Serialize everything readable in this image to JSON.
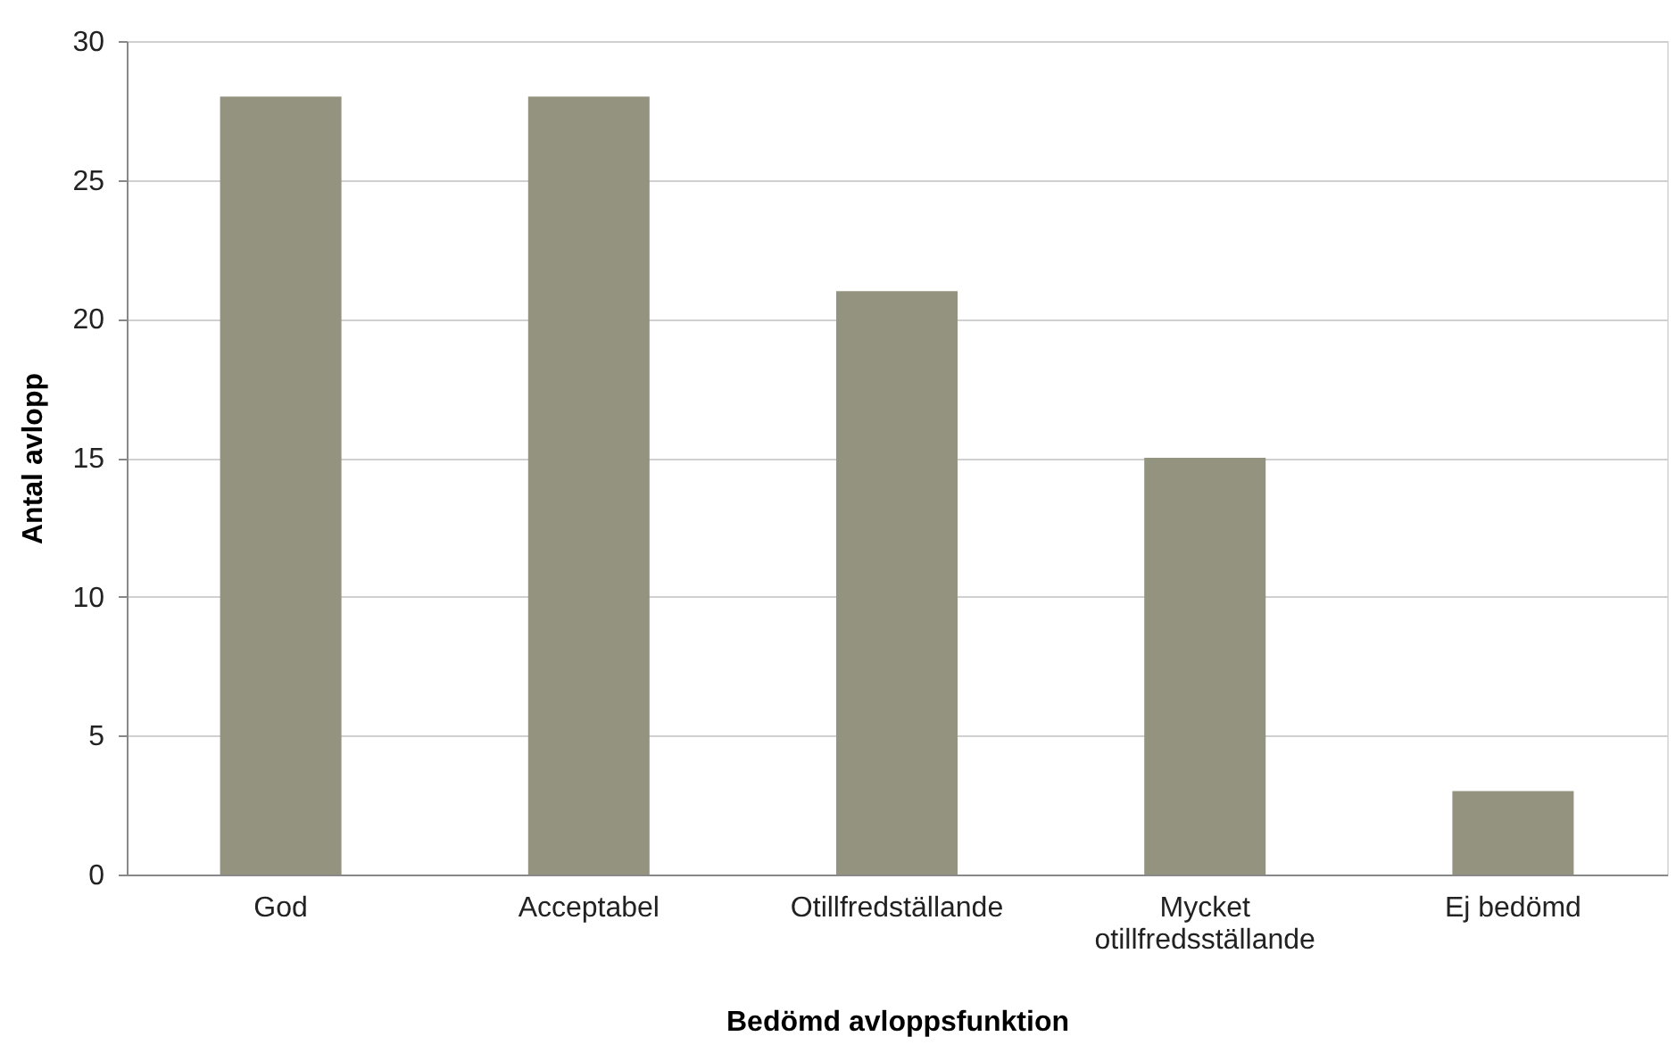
{
  "chart_data": {
    "type": "bar",
    "xlabel": "Bedömd avloppsfunktion",
    "ylabel": "Antal avlopp",
    "categories": [
      "God",
      "Acceptabel",
      "Otillfredställande",
      "Mycket otillfredsställande",
      "Ej bedömd"
    ],
    "values": [
      28,
      28,
      21,
      15,
      3
    ],
    "color": "#94937f",
    "ylim": [
      0,
      30
    ],
    "yticks": [
      0,
      5,
      10,
      15,
      20,
      25,
      30
    ],
    "grid": "y"
  }
}
